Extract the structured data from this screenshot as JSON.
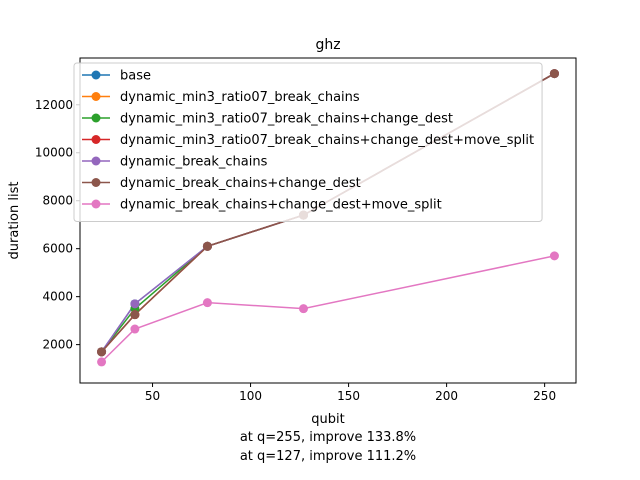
{
  "chart_data": {
    "type": "line",
    "title": "ghz",
    "xlabel": "qubit",
    "ylabel": "duration list",
    "xlim": [
      13,
      266
    ],
    "ylim": [
      400,
      13950
    ],
    "xticks": [
      50,
      100,
      150,
      200,
      250
    ],
    "yticks": [
      2000,
      4000,
      6000,
      8000,
      10000,
      12000
    ],
    "grid": false,
    "legend_position": "top-left",
    "annotations": [
      "at q=255, improve 133.8%",
      "at q=127, improve 111.2%"
    ],
    "series": [
      {
        "name": "base",
        "color": "#1f77b4",
        "x": [
          24,
          41,
          78,
          127,
          255
        ],
        "y": [
          1700,
          3700,
          6100,
          7400,
          13300
        ]
      },
      {
        "name": "dynamic_min3_ratio07_break_chains",
        "color": "#ff7f0e",
        "x": [
          24,
          41,
          78,
          127,
          255
        ],
        "y": [
          1700,
          3250,
          6100,
          7400,
          13300
        ]
      },
      {
        "name": "dynamic_min3_ratio07_break_chains+change_dest",
        "color": "#2ca02c",
        "x": [
          24,
          41,
          78,
          127,
          255
        ],
        "y": [
          1700,
          3500,
          6100,
          7400,
          13300
        ]
      },
      {
        "name": "dynamic_min3_ratio07_break_chains+change_dest+move_split",
        "color": "#d62728",
        "x": [
          24,
          41,
          78,
          127,
          255
        ],
        "y": [
          1700,
          3250,
          6100,
          7400,
          13300
        ]
      },
      {
        "name": "dynamic_break_chains",
        "color": "#9467bd",
        "x": [
          24,
          41,
          78,
          127,
          255
        ],
        "y": [
          1700,
          3700,
          6100,
          7400,
          13300
        ]
      },
      {
        "name": "dynamic_break_chains+change_dest",
        "color": "#8c564b",
        "x": [
          24,
          41,
          78,
          127,
          255
        ],
        "y": [
          1700,
          3250,
          6100,
          7400,
          13300
        ]
      },
      {
        "name": "dynamic_break_chains+change_dest+move_split",
        "color": "#e377c2",
        "x": [
          24,
          41,
          78,
          127,
          255
        ],
        "y": [
          1280,
          2650,
          3750,
          3500,
          5700
        ]
      }
    ]
  }
}
